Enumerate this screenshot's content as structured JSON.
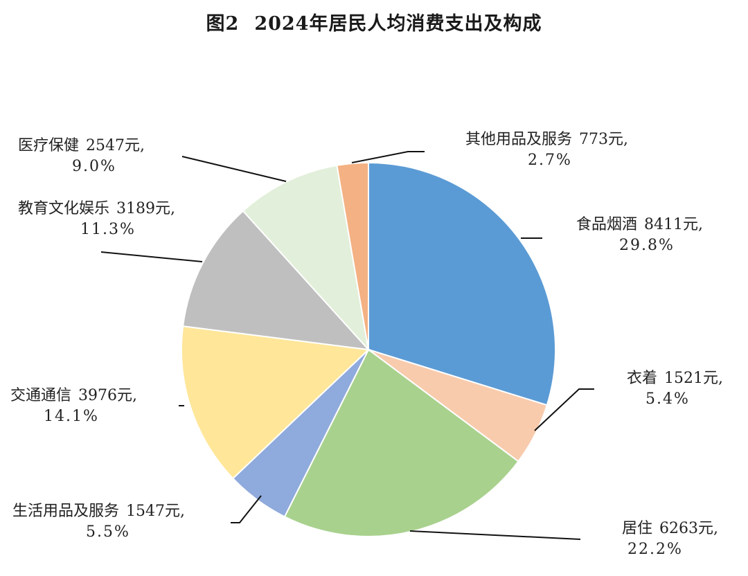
{
  "figure": {
    "number": "图2",
    "title": "2024年居民人均消费支出及构成"
  },
  "chart_data": {
    "type": "pie",
    "title": "2024年居民人均消费支出及构成",
    "start_angle_deg": 0,
    "direction": "clockwise",
    "slices": [
      {
        "key": "food",
        "label": "食品烟酒",
        "amount": 8411,
        "amount_text": "8411元,",
        "percent": 29.8,
        "percent_text": "29.8%",
        "color": "#5B9BD5"
      },
      {
        "key": "clothing",
        "label": "衣着",
        "amount": 1521,
        "amount_text": "1521元,",
        "percent": 5.4,
        "percent_text": "5.4%",
        "color": "#F8CBAD"
      },
      {
        "key": "housing",
        "label": "居住",
        "amount": 6263,
        "amount_text": "6263元,",
        "percent": 22.2,
        "percent_text": "22.2%",
        "color": "#A9D18E"
      },
      {
        "key": "household",
        "label": "生活用品及服务",
        "amount": 1547,
        "amount_text": "1547元,",
        "percent": 5.5,
        "percent_text": "5.5%",
        "color": "#8FAADC"
      },
      {
        "key": "transport",
        "label": "交通通信",
        "amount": 3976,
        "amount_text": "3976元,",
        "percent": 14.1,
        "percent_text": "14.1%",
        "color": "#FFE699"
      },
      {
        "key": "education",
        "label": "教育文化娱乐",
        "amount": 3189,
        "amount_text": "3189元,",
        "percent": 11.3,
        "percent_text": "11.3%",
        "color": "#BFBFBF"
      },
      {
        "key": "medical",
        "label": "医疗保健",
        "amount": 2547,
        "amount_text": "2547元,",
        "percent": 9.0,
        "percent_text": "9.0%",
        "color": "#E2EFDA"
      },
      {
        "key": "other",
        "label": "其他用品及服务",
        "amount": 773,
        "amount_text": "773元,",
        "percent": 2.7,
        "percent_text": "2.7%",
        "color": "#F4B183"
      }
    ]
  }
}
